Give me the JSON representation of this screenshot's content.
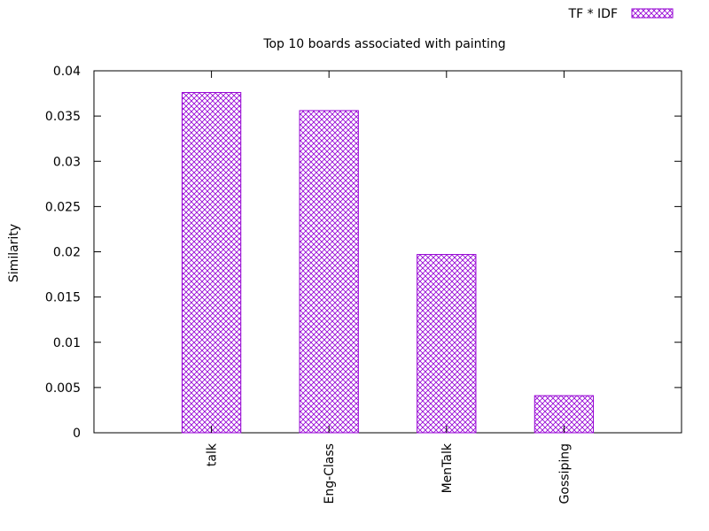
{
  "chart_data": {
    "type": "bar",
    "title": "Top 10 boards associated with painting",
    "xlabel": "",
    "ylabel": "Similarity",
    "ylim": [
      0,
      0.04
    ],
    "yticks": [
      "0",
      "0.005",
      "0.01",
      "0.015",
      "0.02",
      "0.025",
      "0.03",
      "0.035",
      "0.04"
    ],
    "yticks_values": [
      0,
      0.005,
      0.01,
      0.015,
      0.02,
      0.025,
      0.03,
      0.035,
      0.04
    ],
    "categories": [
      "talk",
      "Eng-Class",
      "MenTalk",
      "Gossiping"
    ],
    "series": [
      {
        "name": "TF * IDF",
        "values": [
          0.0376,
          0.0356,
          0.0197,
          0.0041
        ]
      }
    ],
    "legend": {
      "placement": "top-right",
      "pattern": "crosshatch"
    },
    "colors": {
      "bar": "#9400d3"
    },
    "grid": false
  }
}
